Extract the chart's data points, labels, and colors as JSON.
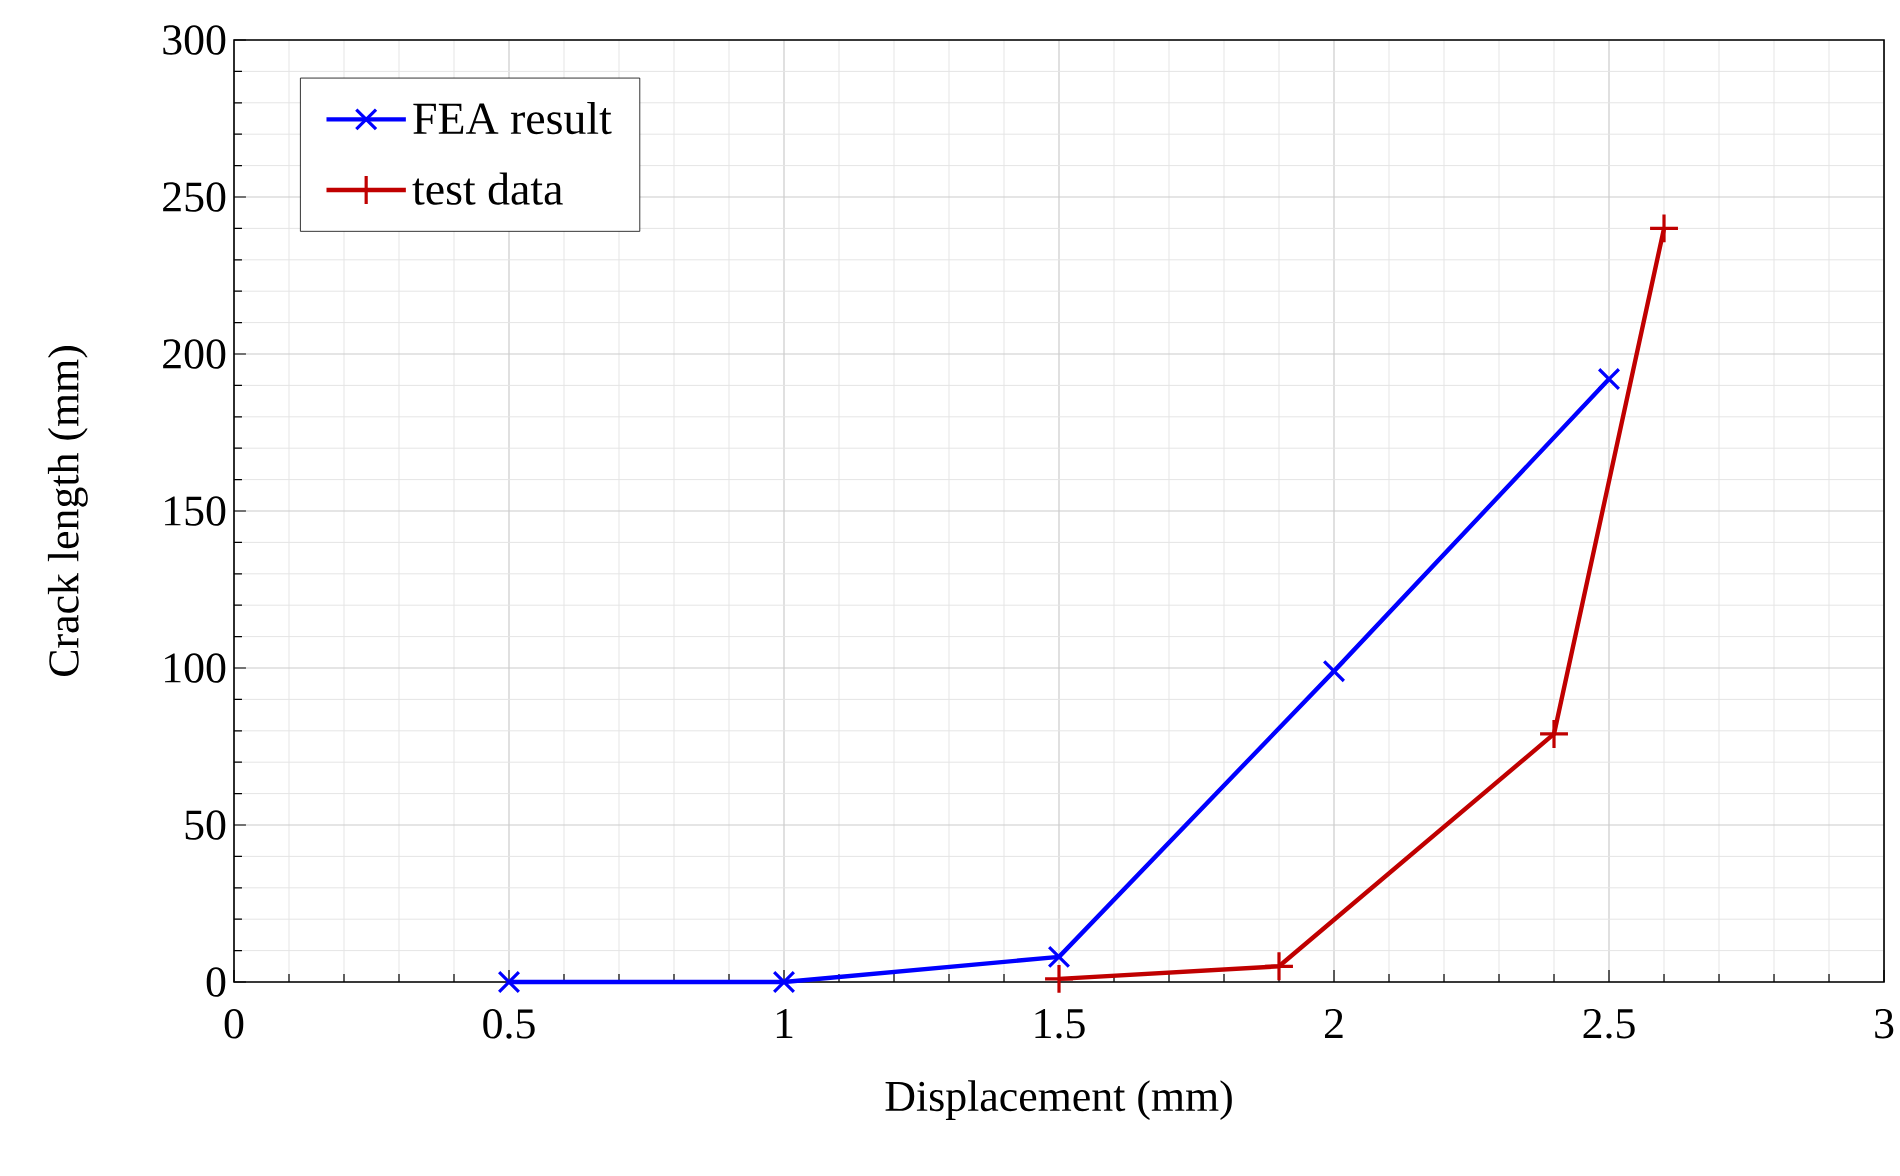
{
  "chart_data": {
    "type": "line",
    "xlabel": "Displacement (mm)",
    "ylabel": "Crack length (mm)",
    "xlim": [
      0,
      3
    ],
    "xticks": [
      0,
      0.5,
      1,
      1.5,
      2,
      2.5,
      3
    ],
    "ylim": [
      0,
      300
    ],
    "yticks": [
      0,
      50,
      100,
      150,
      200,
      250,
      300
    ],
    "grid": true,
    "legend": "top left",
    "line_style": "solid",
    "series": [
      {
        "name": "FEA result",
        "color": "#0000ff",
        "marker": "cross",
        "x": [
          0.5,
          1,
          1.5,
          2,
          2.5
        ],
        "values": [
          0,
          0,
          8,
          99,
          192
        ]
      },
      {
        "name": "test data",
        "color": "#c00000",
        "marker": "plus",
        "x": [
          1.5,
          1.9,
          2.4,
          2.6
        ],
        "values": [
          1,
          5,
          79,
          240
        ]
      }
    ]
  }
}
